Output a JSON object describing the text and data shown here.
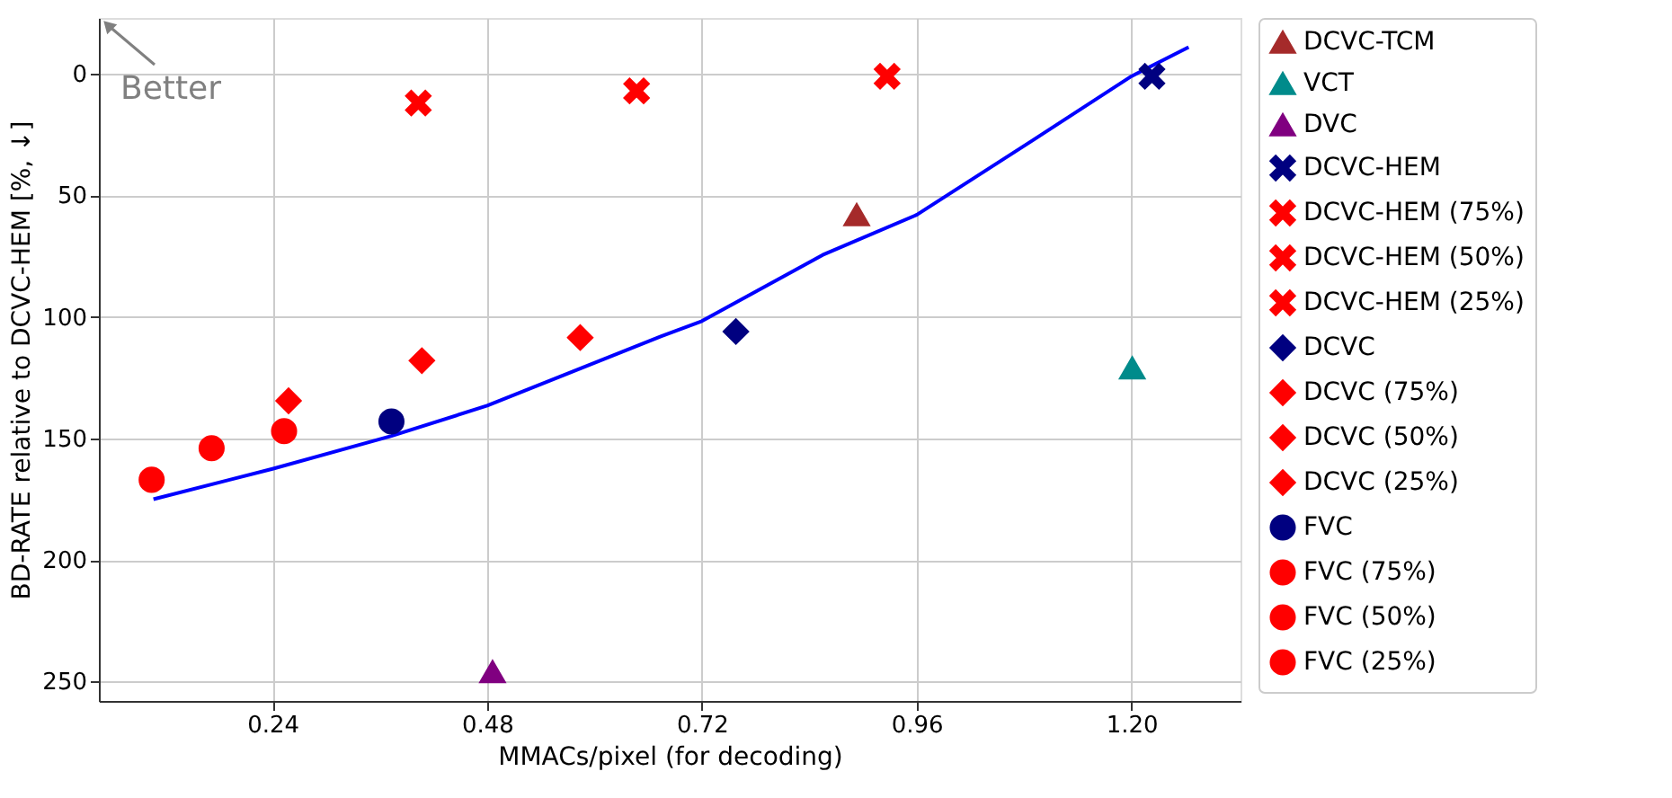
{
  "chart_data": {
    "type": "scatter",
    "xlabel": "MMACs/pixel (for decoding)",
    "ylabel": "BD-RATE relative to DCVC-HEM [%,  ↓]",
    "xlim": [
      0.046,
      1.322
    ],
    "xticks": [
      0.24,
      0.48,
      0.72,
      0.96,
      {
        "value": 1.2,
        "label": "1.20"
      }
    ],
    "ylim": [
      258,
      -23
    ],
    "yticks": [
      0,
      50,
      100,
      150,
      200,
      250
    ],
    "grid": true,
    "legend": "right",
    "annotations": [
      "Better"
    ],
    "series": [
      {
        "name": "DCVC-TCM",
        "marker": "triangle",
        "color": "#a52a2a",
        "x": [
          0.893
        ],
        "values": [
          58
        ]
      },
      {
        "name": "VCT",
        "marker": "triangle",
        "color": "#008b8b",
        "x": [
          1.201
        ],
        "values": [
          121
        ]
      },
      {
        "name": "DVC",
        "marker": "triangle",
        "color": "#800080",
        "x": [
          0.486
        ],
        "values": [
          246
        ]
      },
      {
        "name": "DCVC-HEM",
        "marker": "cross",
        "color": "#000080",
        "x": [
          1.223
        ],
        "values": [
          1
        ]
      },
      {
        "name": "DCVC-HEM (75%)",
        "marker": "cross",
        "color": "#ff0000",
        "x": [
          0.403
        ],
        "values": [
          12
        ]
      },
      {
        "name": "DCVC-HEM (50%)",
        "marker": "cross",
        "color": "#ff0000",
        "x": [
          0.647
        ],
        "values": [
          7
        ]
      },
      {
        "name": "DCVC-HEM (25%)",
        "marker": "cross",
        "color": "#ff0000",
        "x": [
          0.927
        ],
        "values": [
          1
        ]
      },
      {
        "name": "DCVC",
        "marker": "diamond",
        "color": "#000080",
        "x": [
          0.758
        ],
        "values": [
          106
        ]
      },
      {
        "name": "DCVC (75%)",
        "marker": "diamond",
        "color": "#ff0000",
        "x": [
          0.258
        ],
        "values": [
          134.5
        ]
      },
      {
        "name": "DCVC (50%)",
        "marker": "diamond",
        "color": "#ff0000",
        "x": [
          0.407
        ],
        "values": [
          118
        ]
      },
      {
        "name": "DCVC (25%)",
        "marker": "diamond",
        "color": "#ff0000",
        "x": [
          0.584
        ],
        "values": [
          108.5
        ]
      },
      {
        "name": "FVC",
        "marker": "circle",
        "color": "#000080",
        "x": [
          0.373
        ],
        "values": [
          143
        ]
      },
      {
        "name": "FVC (75%)",
        "marker": "circle",
        "color": "#ff0000",
        "x": [
          0.105
        ],
        "values": [
          167
        ]
      },
      {
        "name": "FVC (50%)",
        "marker": "circle",
        "color": "#ff0000",
        "x": [
          0.172
        ],
        "values": [
          154
        ]
      },
      {
        "name": "FVC (25%)",
        "marker": "circle",
        "color": "#ff0000",
        "x": [
          0.253
        ],
        "values": [
          147
        ]
      },
      {
        "type": "line",
        "color": "#0000ff",
        "line_style": "solid",
        "marker": "none",
        "x": [
          0.107,
          0.24,
          0.373,
          0.48,
          0.674,
          0.72,
          0.855,
          0.96,
          1.089,
          1.2,
          1.264
        ],
        "values": [
          175,
          162.5,
          149,
          136.5,
          108,
          101.7,
          74.5,
          58,
          27.5,
          1,
          -11
        ]
      }
    ]
  }
}
